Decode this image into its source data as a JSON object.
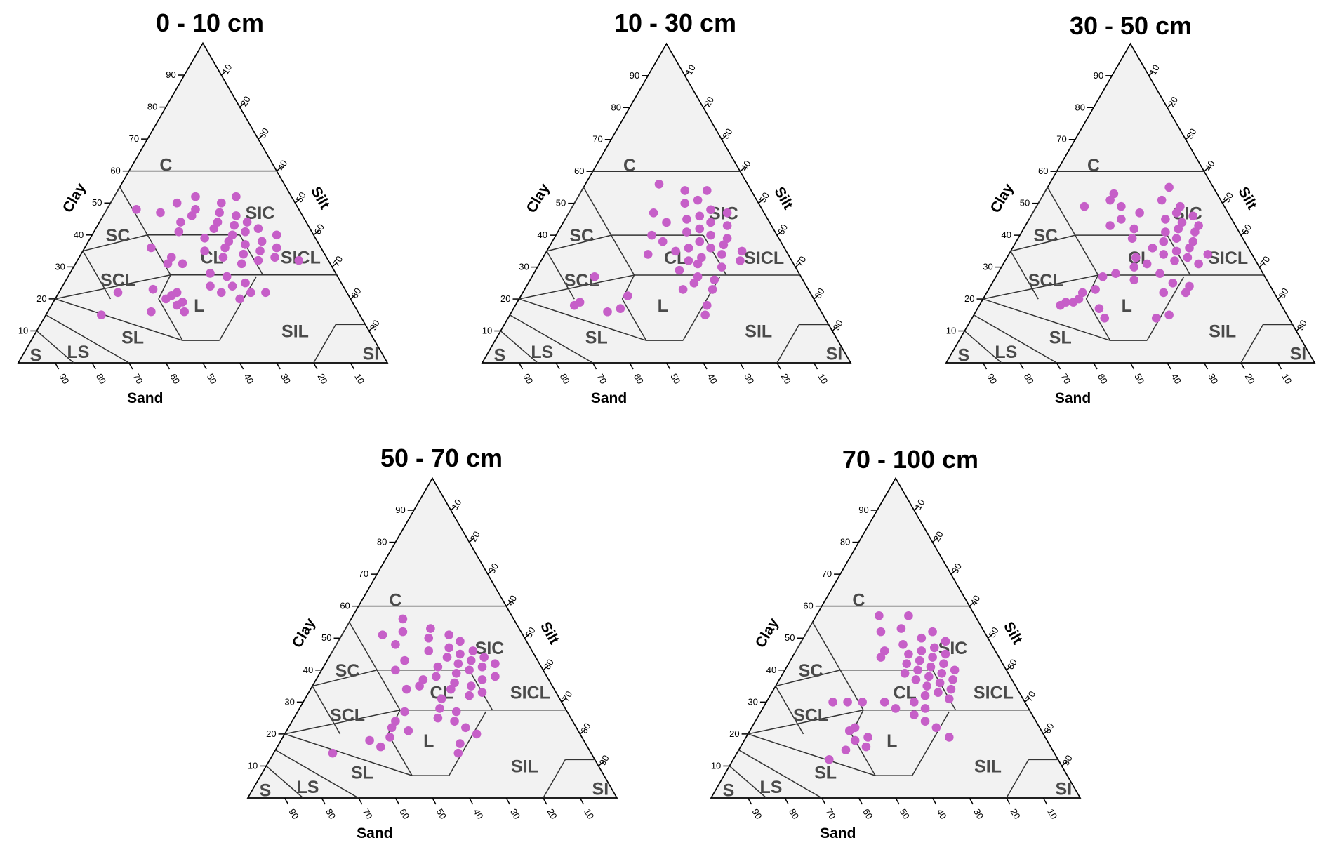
{
  "chart_data": [
    {
      "type": "scatter",
      "subtype": "soil-texture-triangle",
      "title": "0 - 10 cm",
      "axes": {
        "clay": "Clay",
        "silt": "Silt",
        "sand": "Sand"
      },
      "ticks": [
        10,
        20,
        30,
        40,
        50,
        60,
        70,
        80,
        90
      ],
      "regions": [
        "C",
        "SIC",
        "SC",
        "CL",
        "SICL",
        "SCL",
        "L",
        "SIL",
        "SL",
        "SI",
        "S",
        "LS"
      ],
      "grid": false,
      "point_color": "#c65fc8",
      "points": [
        {
          "sand": 15,
          "clay": 52
        },
        {
          "sand": 20,
          "clay": 50
        },
        {
          "sand": 22,
          "clay": 47
        },
        {
          "sand": 18,
          "clay": 46
        },
        {
          "sand": 24,
          "clay": 44
        },
        {
          "sand": 16,
          "clay": 44
        },
        {
          "sand": 20,
          "clay": 43
        },
        {
          "sand": 26,
          "clay": 42
        },
        {
          "sand": 14,
          "clay": 42
        },
        {
          "sand": 18,
          "clay": 41
        },
        {
          "sand": 22,
          "clay": 40
        },
        {
          "sand": 10,
          "clay": 40
        },
        {
          "sand": 24,
          "clay": 38
        },
        {
          "sand": 15,
          "clay": 38
        },
        {
          "sand": 20,
          "clay": 37
        },
        {
          "sand": 12,
          "clay": 36
        },
        {
          "sand": 26,
          "clay": 36
        },
        {
          "sand": 17,
          "clay": 35
        },
        {
          "sand": 22,
          "clay": 34
        },
        {
          "sand": 14,
          "clay": 33
        },
        {
          "sand": 19,
          "clay": 32
        },
        {
          "sand": 8,
          "clay": 32
        },
        {
          "sand": 24,
          "clay": 31
        },
        {
          "sand": 28,
          "clay": 48
        },
        {
          "sand": 30,
          "clay": 46
        },
        {
          "sand": 32,
          "clay": 50
        },
        {
          "sand": 26,
          "clay": 52
        },
        {
          "sand": 34,
          "clay": 44
        },
        {
          "sand": 38,
          "clay": 47
        },
        {
          "sand": 44,
          "clay": 48
        },
        {
          "sand": 36,
          "clay": 41
        },
        {
          "sand": 30,
          "clay": 39
        },
        {
          "sand": 32,
          "clay": 35
        },
        {
          "sand": 28,
          "clay": 33
        },
        {
          "sand": 46,
          "clay": 36
        },
        {
          "sand": 42,
          "clay": 33
        },
        {
          "sand": 44,
          "clay": 31
        },
        {
          "sand": 40,
          "clay": 31
        },
        {
          "sand": 34,
          "clay": 28
        },
        {
          "sand": 30,
          "clay": 27
        },
        {
          "sand": 26,
          "clay": 25
        },
        {
          "sand": 36,
          "clay": 24
        },
        {
          "sand": 30,
          "clay": 24
        },
        {
          "sand": 34,
          "clay": 22
        },
        {
          "sand": 26,
          "clay": 22
        },
        {
          "sand": 30,
          "clay": 20
        },
        {
          "sand": 22,
          "clay": 22
        },
        {
          "sand": 46,
          "clay": 22
        },
        {
          "sand": 48,
          "clay": 21
        },
        {
          "sand": 50,
          "clay": 20
        },
        {
          "sand": 46,
          "clay": 19
        },
        {
          "sand": 48,
          "clay": 18
        },
        {
          "sand": 52,
          "clay": 23
        },
        {
          "sand": 47,
          "clay": 16
        },
        {
          "sand": 56,
          "clay": 16
        },
        {
          "sand": 62,
          "clay": 22
        },
        {
          "sand": 70,
          "clay": 15
        }
      ]
    },
    {
      "type": "scatter",
      "subtype": "soil-texture-triangle",
      "title": "10 - 30 cm",
      "axes": {
        "clay": "Clay",
        "silt": "Silt",
        "sand": "Sand"
      },
      "ticks": [
        10,
        20,
        30,
        40,
        50,
        60,
        70,
        80,
        90
      ],
      "regions": [
        "C",
        "SIC",
        "SC",
        "CL",
        "SICL",
        "SCL",
        "L",
        "SIL",
        "SL",
        "SI",
        "S",
        "LS"
      ],
      "grid": false,
      "point_color": "#c65fc8",
      "points": [
        {
          "sand": 24,
          "clay": 56
        },
        {
          "sand": 18,
          "clay": 54
        },
        {
          "sand": 12,
          "clay": 54
        },
        {
          "sand": 16,
          "clay": 51
        },
        {
          "sand": 20,
          "clay": 50
        },
        {
          "sand": 14,
          "clay": 48
        },
        {
          "sand": 10,
          "clay": 47
        },
        {
          "sand": 18,
          "clay": 46
        },
        {
          "sand": 22,
          "clay": 45
        },
        {
          "sand": 16,
          "clay": 44
        },
        {
          "sand": 12,
          "clay": 43
        },
        {
          "sand": 20,
          "clay": 42
        },
        {
          "sand": 24,
          "clay": 41
        },
        {
          "sand": 18,
          "clay": 40
        },
        {
          "sand": 14,
          "clay": 39
        },
        {
          "sand": 22,
          "clay": 38
        },
        {
          "sand": 16,
          "clay": 37
        },
        {
          "sand": 20,
          "clay": 36
        },
        {
          "sand": 26,
          "clay": 36
        },
        {
          "sand": 12,
          "clay": 35
        },
        {
          "sand": 18,
          "clay": 34
        },
        {
          "sand": 24,
          "clay": 33
        },
        {
          "sand": 28,
          "clay": 32
        },
        {
          "sand": 14,
          "clay": 32
        },
        {
          "sand": 30,
          "clay": 47
        },
        {
          "sand": 28,
          "clay": 44
        },
        {
          "sand": 34,
          "clay": 40
        },
        {
          "sand": 32,
          "clay": 38
        },
        {
          "sand": 30,
          "clay": 35
        },
        {
          "sand": 26,
          "clay": 31
        },
        {
          "sand": 32,
          "clay": 29
        },
        {
          "sand": 28,
          "clay": 27
        },
        {
          "sand": 24,
          "clay": 26
        },
        {
          "sand": 30,
          "clay": 25
        },
        {
          "sand": 26,
          "clay": 23
        },
        {
          "sand": 34,
          "clay": 23
        },
        {
          "sand": 30,
          "clay": 18
        },
        {
          "sand": 32,
          "clay": 15
        },
        {
          "sand": 20,
          "clay": 30
        },
        {
          "sand": 38,
          "clay": 34
        },
        {
          "sand": 50,
          "clay": 21
        },
        {
          "sand": 56,
          "clay": 27
        },
        {
          "sand": 58,
          "clay": 16
        },
        {
          "sand": 54,
          "clay": 17
        },
        {
          "sand": 64,
          "clay": 19
        },
        {
          "sand": 66,
          "clay": 18
        }
      ]
    },
    {
      "type": "scatter",
      "subtype": "soil-texture-triangle",
      "title": "30 - 50 cm",
      "axes": {
        "clay": "Clay",
        "silt": "Silt",
        "sand": "Sand"
      },
      "ticks": [
        10,
        20,
        30,
        40,
        50,
        60,
        70,
        80,
        90
      ],
      "regions": [
        "C",
        "SIC",
        "SC",
        "CL",
        "SICL",
        "SCL",
        "L",
        "SIL",
        "SL",
        "SI",
        "S",
        "LS"
      ],
      "grid": false,
      "point_color": "#c65fc8",
      "points": [
        {
          "sand": 12,
          "clay": 55
        },
        {
          "sand": 16,
          "clay": 51
        },
        {
          "sand": 12,
          "clay": 49
        },
        {
          "sand": 14,
          "clay": 47
        },
        {
          "sand": 10,
          "clay": 46
        },
        {
          "sand": 18,
          "clay": 45
        },
        {
          "sand": 14,
          "clay": 44
        },
        {
          "sand": 10,
          "clay": 43
        },
        {
          "sand": 16,
          "clay": 42
        },
        {
          "sand": 20,
          "clay": 41
        },
        {
          "sand": 12,
          "clay": 41
        },
        {
          "sand": 18,
          "clay": 39
        },
        {
          "sand": 14,
          "clay": 38
        },
        {
          "sand": 22,
          "clay": 38
        },
        {
          "sand": 16,
          "clay": 36
        },
        {
          "sand": 20,
          "clay": 35
        },
        {
          "sand": 12,
          "clay": 34
        },
        {
          "sand": 24,
          "clay": 34
        },
        {
          "sand": 18,
          "clay": 33
        },
        {
          "sand": 22,
          "clay": 32
        },
        {
          "sand": 16,
          "clay": 31
        },
        {
          "sand": 28,
          "clay": 53
        },
        {
          "sand": 30,
          "clay": 51
        },
        {
          "sand": 28,
          "clay": 49
        },
        {
          "sand": 38,
          "clay": 49
        },
        {
          "sand": 24,
          "clay": 47
        },
        {
          "sand": 30,
          "clay": 45
        },
        {
          "sand": 34,
          "clay": 43
        },
        {
          "sand": 28,
          "clay": 42
        },
        {
          "sand": 30,
          "clay": 39
        },
        {
          "sand": 26,
          "clay": 36
        },
        {
          "sand": 32,
          "clay": 33
        },
        {
          "sand": 30,
          "clay": 31
        },
        {
          "sand": 34,
          "clay": 30
        },
        {
          "sand": 28,
          "clay": 28
        },
        {
          "sand": 26,
          "clay": 25
        },
        {
          "sand": 22,
          "clay": 24
        },
        {
          "sand": 30,
          "clay": 22
        },
        {
          "sand": 24,
          "clay": 22
        },
        {
          "sand": 36,
          "clay": 26
        },
        {
          "sand": 32,
          "clay": 15
        },
        {
          "sand": 36,
          "clay": 14
        },
        {
          "sand": 40,
          "clay": 28
        },
        {
          "sand": 44,
          "clay": 27
        },
        {
          "sand": 48,
          "clay": 23
        },
        {
          "sand": 54,
          "clay": 20
        },
        {
          "sand": 52,
          "clay": 22
        },
        {
          "sand": 56,
          "clay": 19
        },
        {
          "sand": 50,
          "clay": 17
        },
        {
          "sand": 50,
          "clay": 14
        },
        {
          "sand": 58,
          "clay": 19
        },
        {
          "sand": 60,
          "clay": 18
        }
      ]
    },
    {
      "type": "scatter",
      "subtype": "soil-texture-triangle",
      "title": "50 - 70 cm",
      "axes": {
        "clay": "Clay",
        "silt": "Silt",
        "sand": "Sand"
      },
      "ticks": [
        10,
        20,
        30,
        40,
        50,
        60,
        70,
        80,
        90
      ],
      "regions": [
        "C",
        "SIC",
        "SC",
        "CL",
        "SICL",
        "SCL",
        "L",
        "SIL",
        "SL",
        "SI",
        "S",
        "LS"
      ],
      "grid": false,
      "point_color": "#c65fc8",
      "points": [
        {
          "sand": 30,
          "clay": 56
        },
        {
          "sand": 24,
          "clay": 53
        },
        {
          "sand": 32,
          "clay": 52
        },
        {
          "sand": 20,
          "clay": 51
        },
        {
          "sand": 38,
          "clay": 51
        },
        {
          "sand": 26,
          "clay": 50
        },
        {
          "sand": 18,
          "clay": 49
        },
        {
          "sand": 36,
          "clay": 48
        },
        {
          "sand": 22,
          "clay": 47
        },
        {
          "sand": 16,
          "clay": 46
        },
        {
          "sand": 28,
          "clay": 46
        },
        {
          "sand": 20,
          "clay": 45
        },
        {
          "sand": 14,
          "clay": 44
        },
        {
          "sand": 24,
          "clay": 44
        },
        {
          "sand": 18,
          "clay": 43
        },
        {
          "sand": 36,
          "clay": 43
        },
        {
          "sand": 22,
          "clay": 42
        },
        {
          "sand": 12,
          "clay": 42
        },
        {
          "sand": 16,
          "clay": 41
        },
        {
          "sand": 28,
          "clay": 41
        },
        {
          "sand": 20,
          "clay": 40
        },
        {
          "sand": 40,
          "clay": 40
        },
        {
          "sand": 24,
          "clay": 39
        },
        {
          "sand": 14,
          "clay": 38
        },
        {
          "sand": 30,
          "clay": 38
        },
        {
          "sand": 34,
          "clay": 37
        },
        {
          "sand": 18,
          "clay": 37
        },
        {
          "sand": 26,
          "clay": 36
        },
        {
          "sand": 22,
          "clay": 35
        },
        {
          "sand": 36,
          "clay": 35
        },
        {
          "sand": 28,
          "clay": 34
        },
        {
          "sand": 40,
          "clay": 34
        },
        {
          "sand": 20,
          "clay": 33
        },
        {
          "sand": 24,
          "clay": 32
        },
        {
          "sand": 32,
          "clay": 31
        },
        {
          "sand": 34,
          "clay": 28
        },
        {
          "sand": 30,
          "clay": 27
        },
        {
          "sand": 36,
          "clay": 25
        },
        {
          "sand": 32,
          "clay": 24
        },
        {
          "sand": 30,
          "clay": 22
        },
        {
          "sand": 28,
          "clay": 20
        },
        {
          "sand": 34,
          "clay": 17
        },
        {
          "sand": 36,
          "clay": 14
        },
        {
          "sand": 44,
          "clay": 27
        },
        {
          "sand": 48,
          "clay": 24
        },
        {
          "sand": 50,
          "clay": 22
        },
        {
          "sand": 46,
          "clay": 21
        },
        {
          "sand": 52,
          "clay": 19
        },
        {
          "sand": 56,
          "clay": 16
        },
        {
          "sand": 58,
          "clay": 18
        },
        {
          "sand": 70,
          "clay": 14
        }
      ]
    },
    {
      "type": "scatter",
      "subtype": "soil-texture-triangle",
      "title": "70 - 100 cm",
      "axes": {
        "clay": "Clay",
        "silt": "Silt",
        "sand": "Sand"
      },
      "ticks": [
        10,
        20,
        30,
        40,
        50,
        60,
        70,
        80,
        90
      ],
      "regions": [
        "C",
        "SIC",
        "SC",
        "CL",
        "SICL",
        "SCL",
        "L",
        "SIL",
        "SL",
        "SI",
        "S",
        "LS"
      ],
      "grid": false,
      "point_color": "#c65fc8",
      "points": [
        {
          "sand": 26,
          "clay": 57
        },
        {
          "sand": 18,
          "clay": 57
        },
        {
          "sand": 22,
          "clay": 53
        },
        {
          "sand": 14,
          "clay": 52
        },
        {
          "sand": 28,
          "clay": 52
        },
        {
          "sand": 18,
          "clay": 50
        },
        {
          "sand": 12,
          "clay": 49
        },
        {
          "sand": 24,
          "clay": 48
        },
        {
          "sand": 16,
          "clay": 47
        },
        {
          "sand": 20,
          "clay": 46
        },
        {
          "sand": 30,
          "clay": 46
        },
        {
          "sand": 14,
          "clay": 45
        },
        {
          "sand": 24,
          "clay": 45
        },
        {
          "sand": 18,
          "clay": 44
        },
        {
          "sand": 32,
          "clay": 44
        },
        {
          "sand": 22,
          "clay": 43
        },
        {
          "sand": 16,
          "clay": 42
        },
        {
          "sand": 26,
          "clay": 42
        },
        {
          "sand": 20,
          "clay": 41
        },
        {
          "sand": 14,
          "clay": 40
        },
        {
          "sand": 24,
          "clay": 40
        },
        {
          "sand": 18,
          "clay": 39
        },
        {
          "sand": 28,
          "clay": 39
        },
        {
          "sand": 22,
          "clay": 38
        },
        {
          "sand": 16,
          "clay": 37
        },
        {
          "sand": 26,
          "clay": 37
        },
        {
          "sand": 20,
          "clay": 36
        },
        {
          "sand": 24,
          "clay": 35
        },
        {
          "sand": 18,
          "clay": 34
        },
        {
          "sand": 22,
          "clay": 33
        },
        {
          "sand": 26,
          "clay": 32
        },
        {
          "sand": 20,
          "clay": 31
        },
        {
          "sand": 30,
          "clay": 30
        },
        {
          "sand": 28,
          "clay": 28
        },
        {
          "sand": 32,
          "clay": 26
        },
        {
          "sand": 30,
          "clay": 24
        },
        {
          "sand": 28,
          "clay": 22
        },
        {
          "sand": 26,
          "clay": 19
        },
        {
          "sand": 38,
          "clay": 30
        },
        {
          "sand": 36,
          "clay": 28
        },
        {
          "sand": 44,
          "clay": 30
        },
        {
          "sand": 48,
          "clay": 30
        },
        {
          "sand": 52,
          "clay": 30
        },
        {
          "sand": 50,
          "clay": 22
        },
        {
          "sand": 52,
          "clay": 21
        },
        {
          "sand": 48,
          "clay": 19
        },
        {
          "sand": 52,
          "clay": 18
        },
        {
          "sand": 50,
          "clay": 16
        },
        {
          "sand": 56,
          "clay": 15
        },
        {
          "sand": 62,
          "clay": 12
        }
      ]
    }
  ]
}
